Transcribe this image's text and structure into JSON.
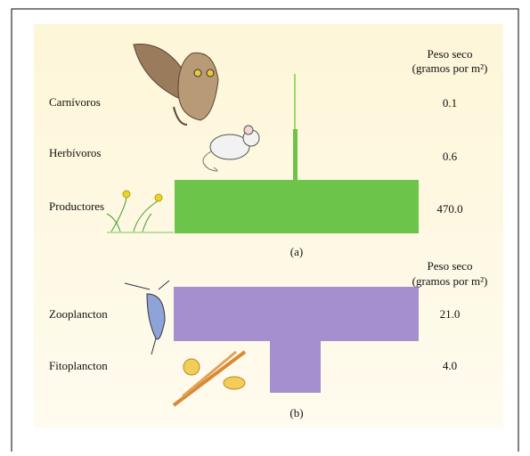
{
  "pyramid_a": {
    "header": [
      "Peso seco",
      "(gramos por m²)"
    ],
    "levels": [
      {
        "label": "Carnívoros",
        "value": "0.1"
      },
      {
        "label": "Herbívoros",
        "value": "0.6"
      },
      {
        "label": "Productores",
        "value": "470.0"
      }
    ],
    "caption": "(a)"
  },
  "pyramid_b": {
    "header": [
      "Peso seco",
      "(gramos por m²)"
    ],
    "levels": [
      {
        "label": "Zooplancton",
        "value": "21.0"
      },
      {
        "label": "Fitoplancton",
        "value": "4.0"
      }
    ],
    "caption": "(b)"
  }
}
